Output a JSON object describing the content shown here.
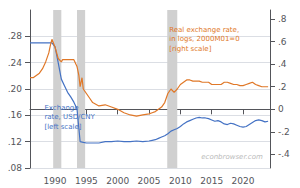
{
  "chart_data": {
    "type": "line",
    "xlim": [
      1986.0,
      2024.3
    ],
    "xticks": [
      1990,
      1995,
      2000,
      2005,
      2010,
      2015,
      2020
    ],
    "ylim": [
      0.08,
      0.32
    ],
    "yticks": [
      {
        "value": 0.08,
        "label": ".08"
      },
      {
        "value": 0.12,
        "label": ".12"
      },
      {
        "value": 0.16,
        "label": ".16"
      },
      {
        "value": 0.2,
        "label": ".20"
      },
      {
        "value": 0.24,
        "label": ".24"
      },
      {
        "value": 0.28,
        "label": ".28"
      }
    ],
    "y2lim": [
      -0.52,
      0.88
    ],
    "y2ticks": [
      {
        "value": -0.4,
        "label": "-.4"
      },
      {
        "value": -0.2,
        "label": "-.2"
      },
      0,
      {
        "value": 0.2,
        "label": ".2"
      },
      {
        "value": 0.4,
        "label": ".4"
      },
      {
        "value": 0.6,
        "label": ".6"
      },
      {
        "value": 0.8,
        "label": ".8"
      }
    ],
    "grid": true,
    "bands": {
      "color": "#d0d0d0",
      "ranges": [
        [
          1989.7,
          1991.0
        ],
        [
          1993.5,
          1994.8
        ],
        [
          2007.9,
          2009.5
        ]
      ]
    },
    "annotations": [
      {
        "text": "Exchange\nrate, USD/CNY\n[left scale]",
        "color": "#4472c4"
      },
      {
        "text": "Real exchange rate,\nin logs, 2000M01=0\n[right scale]",
        "color": "#e07828"
      },
      {
        "text": "econbrowser.com",
        "color": "#bbbbbb"
      }
    ],
    "series": [
      {
        "color": "#4472c4",
        "x": [
          1986.0,
          1986.5,
          1987.0,
          1987.5,
          1988.0,
          1988.5,
          1989.0,
          1989.5,
          1990.0,
          1990.5,
          1991.0,
          1991.5,
          1992.0,
          1992.5,
          1993.0,
          1993.5,
          1994.0,
          1994.5,
          1995.0,
          1995.5,
          1996.0,
          1997.0,
          1998.0,
          1999.0,
          2000.0,
          2001.0,
          2002.0,
          2003.0,
          2004.0,
          2005.0,
          2005.5,
          2006.0,
          2006.5,
          2007.0,
          2007.5,
          2008.0,
          2008.5,
          2009.0,
          2009.5,
          2010.0,
          2010.5,
          2011.0,
          2011.5,
          2012.0,
          2012.5,
          2013.0,
          2013.5,
          2014.0,
          2014.5,
          2015.0,
          2015.5,
          2016.0,
          2016.5,
          2017.0,
          2017.5,
          2018.0,
          2018.5,
          2019.0,
          2019.5,
          2020.0,
          2020.5,
          2021.0,
          2021.5,
          2022.0,
          2022.5,
          2023.0,
          2023.5,
          2024.0
        ],
        "values": [
          0.27,
          0.27,
          0.27,
          0.27,
          0.27,
          0.27,
          0.27,
          0.27,
          0.264,
          0.24,
          0.215,
          0.205,
          0.195,
          0.188,
          0.18,
          0.17,
          0.12,
          0.119,
          0.118,
          0.118,
          0.118,
          0.118,
          0.12,
          0.12,
          0.121,
          0.12,
          0.12,
          0.121,
          0.12,
          0.121,
          0.122,
          0.123,
          0.125,
          0.127,
          0.129,
          0.132,
          0.136,
          0.138,
          0.14,
          0.143,
          0.147,
          0.15,
          0.152,
          0.154,
          0.156,
          0.157,
          0.156,
          0.156,
          0.155,
          0.153,
          0.151,
          0.152,
          0.15,
          0.147,
          0.146,
          0.148,
          0.147,
          0.145,
          0.143,
          0.142,
          0.143,
          0.146,
          0.149,
          0.152,
          0.153,
          0.152,
          0.15,
          0.151
        ]
      },
      {
        "color": "#e07828",
        "axis": "y2",
        "x": [
          1986.0,
          1986.5,
          1987.0,
          1987.5,
          1988.0,
          1988.5,
          1989.0,
          1989.3,
          1989.5,
          1990.0,
          1990.5,
          1991.0,
          1991.2,
          1991.5,
          1992.0,
          1992.5,
          1993.0,
          1993.5,
          1993.8,
          1994.0,
          1994.3,
          1994.5,
          1995.0,
          1995.5,
          1996.0,
          1997.0,
          1998.0,
          1999.0,
          2000.0,
          2001.0,
          2002.0,
          2003.0,
          2004.0,
          2005.0,
          2005.5,
          2006.0,
          2006.5,
          2007.0,
          2007.5,
          2008.0,
          2008.5,
          2009.0,
          2009.5,
          2010.0,
          2010.5,
          2011.0,
          2011.5,
          2012.0,
          2012.5,
          2013.0,
          2013.5,
          2014.0,
          2014.5,
          2015.0,
          2015.5,
          2016.0,
          2016.5,
          2017.0,
          2017.5,
          2018.0,
          2018.5,
          2019.0,
          2019.5,
          2020.0,
          2020.5,
          2021.0,
          2021.5,
          2022.0,
          2022.5,
          2023.0,
          2023.5,
          2024.0
        ],
        "values": [
          0.28,
          0.28,
          0.3,
          0.32,
          0.36,
          0.42,
          0.5,
          0.58,
          0.62,
          0.55,
          0.45,
          0.42,
          0.44,
          0.44,
          0.44,
          0.44,
          0.44,
          0.38,
          0.3,
          0.2,
          0.28,
          0.18,
          0.14,
          0.1,
          0.06,
          0.03,
          0.04,
          0.02,
          0.0,
          -0.03,
          -0.05,
          -0.06,
          -0.05,
          -0.04,
          -0.03,
          -0.02,
          0.0,
          0.02,
          0.06,
          0.14,
          0.18,
          0.15,
          0.18,
          0.22,
          0.24,
          0.26,
          0.26,
          0.25,
          0.25,
          0.25,
          0.24,
          0.24,
          0.24,
          0.22,
          0.22,
          0.22,
          0.22,
          0.24,
          0.24,
          0.23,
          0.22,
          0.22,
          0.21,
          0.21,
          0.22,
          0.23,
          0.24,
          0.22,
          0.21,
          0.2,
          0.2,
          0.2
        ]
      }
    ]
  }
}
